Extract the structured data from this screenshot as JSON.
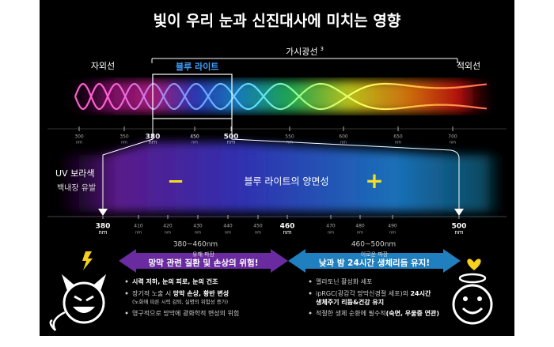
{
  "title": "빛이 우리 눈과 신진대사에 미치는 영향",
  "spectrum": {
    "uv": "자외선",
    "blue": "블루 라이트",
    "visible": "가시광선",
    "visible_note": "3",
    "ir": "적외선",
    "ticks": [
      "300",
      "350",
      "380",
      "450",
      "500",
      "550",
      "600",
      "650",
      "700"
    ],
    "unit": "nm"
  },
  "band": {
    "left_title": "UV 보라색",
    "left_sub": "백내장 유발",
    "center": "블루 라이트의 양면성",
    "minus": "−",
    "plus": "+",
    "ticks": [
      "380",
      "410",
      "420",
      "430",
      "440",
      "450",
      "460",
      "470",
      "480",
      "490",
      "500"
    ],
    "unit": "nm"
  },
  "harmful": {
    "range": "380~460nm",
    "tag": "유해 파장",
    "headline": "망막 관련 질환 및 손상의 위험!",
    "bullets": [
      [
        {
          "t": "시력 저하, 눈의 피로, 눈의 건조",
          "b": true
        }
      ],
      [
        {
          "t": "장기적 노출 시 ",
          "b": false
        },
        {
          "t": "망막 손상, 황반 변성",
          "b": true
        }
      ],
      [
        {
          "t": "(노화에 따른 시력 감퇴, 실명의 위험성 증가)",
          "b": false
        }
      ],
      [
        {
          "t": "영구적으로 망막에 광화학적 변성의 위험",
          "b": false
        }
      ]
    ]
  },
  "beneficial": {
    "range": "460~500nm",
    "tag": "이로운 파장",
    "headline": "낮과 밤 24시간 생체리듬 유지!",
    "bullets": [
      [
        {
          "t": "멜라토닌 활성화 세포",
          "b": false
        }
      ],
      [
        {
          "t": "ipRGC(광감각 망막신경절 세포)의 ",
          "b": false
        },
        {
          "t": "24시간",
          "b": true
        }
      ],
      [
        {
          "t": "생체주기 리듬&건강 유지",
          "b": true
        }
      ],
      [
        {
          "t": "적절한 생체 순환에 필수적",
          "b": false
        },
        {
          "t": "(숙면, 우울증 연관)",
          "b": true
        }
      ]
    ]
  }
}
